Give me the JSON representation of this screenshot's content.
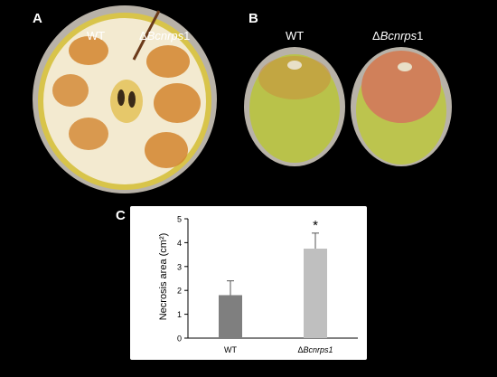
{
  "panels": {
    "a": {
      "letter": "A",
      "label_wt": "WT",
      "label_mutant_prefix": "Δ",
      "label_mutant_italic": "Bcnrps",
      "label_mutant_suffix": "1"
    },
    "b": {
      "letter": "B",
      "label_wt": "WT",
      "label_mutant_prefix": "Δ",
      "label_mutant_italic": "Bcnrps",
      "label_mutant_suffix": "1"
    },
    "c": {
      "letter": "C"
    }
  },
  "colors": {
    "background": "#000000",
    "bar_wt": "#7f7f7f",
    "bar_mutant": "#bfbfbf",
    "apple_flesh": "#f3ead0",
    "apple_skin": "#d8c44a",
    "lesion": "#d2852e",
    "rot": "#d0805a"
  },
  "chart_data": {
    "type": "bar",
    "ylabel": "Necrosis area (cm²)",
    "ylim": [
      0,
      5
    ],
    "yticks": [
      0,
      1,
      2,
      3,
      4,
      5
    ],
    "categories": [
      "WT",
      "ΔBcnrps1"
    ],
    "category_italic_part": "Bcnrps1",
    "values": [
      1.8,
      3.75
    ],
    "errors": [
      0.6,
      0.65
    ],
    "significance": [
      "",
      "*"
    ]
  }
}
